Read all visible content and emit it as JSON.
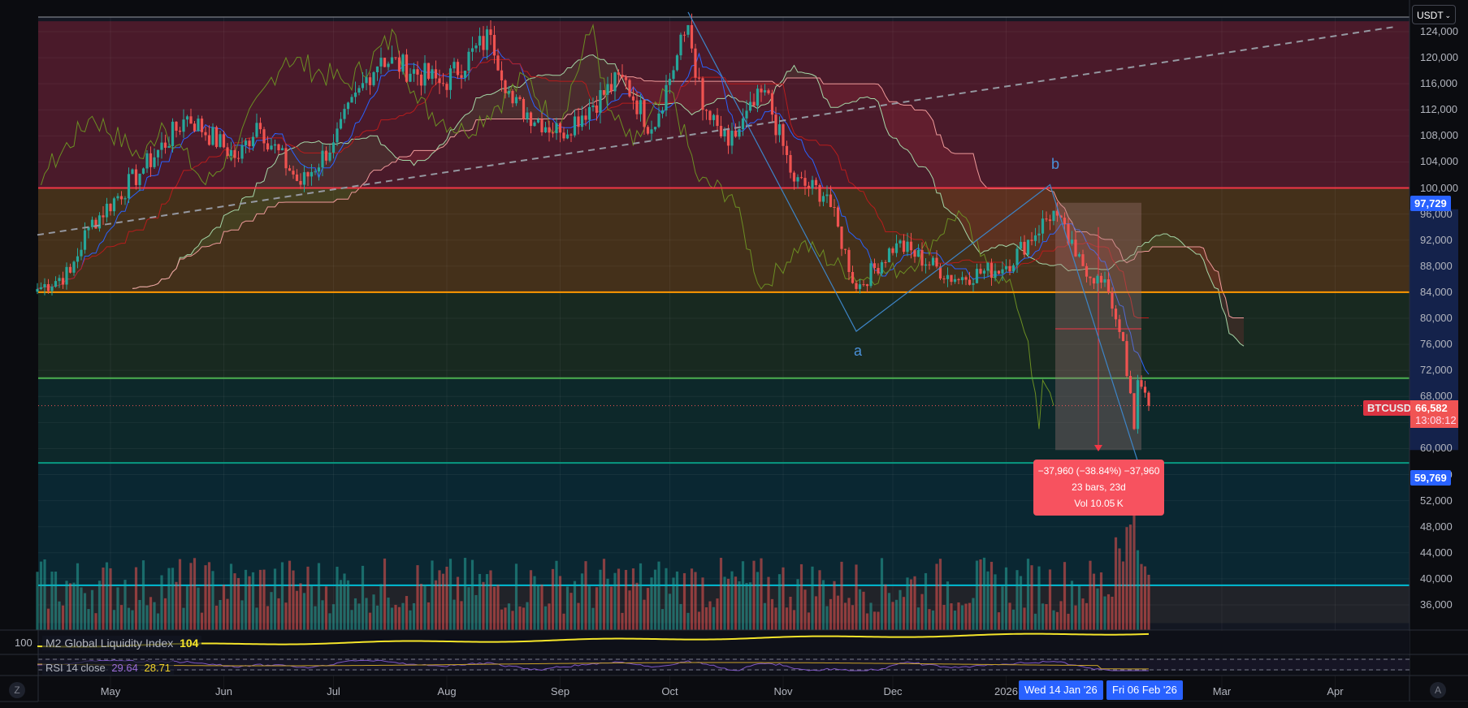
{
  "header": {
    "currency_select": "USDT"
  },
  "price_axis": {
    "ticks": [
      124000,
      120000,
      116000,
      112000,
      108000,
      104000,
      100000,
      96000,
      92000,
      88000,
      84000,
      80000,
      76000,
      72000,
      68000,
      64000,
      60000,
      56000,
      52000,
      48000,
      44000,
      40000,
      36000
    ],
    "tick_labels": [
      "124,000",
      "120,000",
      "116,000",
      "112,000",
      "108,000",
      "104,000",
      "100,000",
      "96,000",
      "92,000",
      "88,000",
      "84,000",
      "80,000",
      "76,000",
      "72,000",
      "68,000",
      "64,000",
      "60,000",
      "56,000",
      "52,000",
      "48,000",
      "44,000",
      "40,000",
      "36,000"
    ],
    "range_high_label": "97,729",
    "range_low_label": "59,769",
    "symbol_label": "BTCUSDT",
    "last_price_label": "66,582",
    "countdown": "13:08:12"
  },
  "time_axis": {
    "months": [
      {
        "label": "May",
        "date": "2025-05-01"
      },
      {
        "label": "Jun",
        "date": "2025-06-01"
      },
      {
        "label": "Jul",
        "date": "2025-07-01"
      },
      {
        "label": "Aug",
        "date": "2025-08-01"
      },
      {
        "label": "Sep",
        "date": "2025-09-01"
      },
      {
        "label": "Oct",
        "date": "2025-10-01"
      },
      {
        "label": "Nov",
        "date": "2025-11-01"
      },
      {
        "label": "Dec",
        "date": "2025-12-01"
      },
      {
        "label": "2026",
        "date": "2026-01-01"
      },
      {
        "label": "Mar",
        "date": "2026-03-01"
      },
      {
        "label": "Apr",
        "date": "2026-04-01"
      }
    ],
    "range_start_label": "Wed 14 Jan '26",
    "range_end_label": "Fri 06 Feb '26"
  },
  "measure": {
    "line1": "−37,960 (−38.84%) −37,960",
    "line2": "23 bars, 23d",
    "line3": "Vol 10.05 K",
    "from_price": 97729,
    "to_price": 59769,
    "from_date": "2026-01-14",
    "to_date": "2026-02-06"
  },
  "wave_labels": {
    "a": "a",
    "b": "b"
  },
  "indicators": {
    "m2": {
      "name": "M2 Global Liquidity Index",
      "value": "104",
      "axis_label": "100"
    },
    "rsi": {
      "name": "RSI 14 close",
      "value1": "29.64",
      "value2": "28.71"
    }
  },
  "buttons": {
    "zoom": "Z",
    "auto": "A"
  },
  "colors": {
    "up": "#26a69a",
    "down": "#ef5350",
    "accent": "#2962ff",
    "m2": "#f5e52a",
    "rsi": "#7e57c2"
  },
  "chart_data": {
    "type": "candlestick",
    "symbol": "BTCUSDT",
    "interval": "1D",
    "ylim": [
      33000,
      126000
    ],
    "close_keypoints": [
      [
        "2025-04-11",
        84500
      ],
      [
        "2025-04-20",
        87000
      ],
      [
        "2025-04-25",
        94000
      ],
      [
        "2025-05-10",
        103000
      ],
      [
        "2025-05-22",
        111000
      ],
      [
        "2025-06-05",
        104500
      ],
      [
        "2025-06-10",
        110000
      ],
      [
        "2025-06-22",
        100500
      ],
      [
        "2025-07-01",
        107000
      ],
      [
        "2025-07-10",
        117000
      ],
      [
        "2025-07-14",
        120000
      ],
      [
        "2025-07-31",
        116000
      ],
      [
        "2025-08-13",
        123500
      ],
      [
        "2025-08-19",
        113000
      ],
      [
        "2025-09-01",
        108500
      ],
      [
        "2025-09-18",
        117000
      ],
      [
        "2025-09-26",
        109000
      ],
      [
        "2025-10-06",
        125000
      ],
      [
        "2025-10-10",
        112000
      ],
      [
        "2025-10-17",
        106500
      ],
      [
        "2025-10-27",
        115000
      ],
      [
        "2025-11-04",
        101000
      ],
      [
        "2025-11-13",
        99000
      ],
      [
        "2025-11-21",
        84500
      ],
      [
        "2025-12-02",
        91500
      ],
      [
        "2025-12-18",
        86000
      ],
      [
        "2026-01-01",
        88000
      ],
      [
        "2026-01-14",
        96500
      ],
      [
        "2026-01-20",
        89500
      ],
      [
        "2026-01-29",
        84000
      ],
      [
        "2026-02-02",
        76500
      ],
      [
        "2026-02-05",
        63000
      ],
      [
        "2026-02-06",
        70500
      ],
      [
        "2026-02-09",
        66582
      ]
    ],
    "horizontal_levels": [
      {
        "price": 100000,
        "color": "#f23645"
      },
      {
        "price": 84000,
        "color": "#ff9800"
      },
      {
        "price": 70800,
        "color": "#4caf50"
      },
      {
        "price": 57800,
        "color": "#089981"
      },
      {
        "price": 39000,
        "color": "#00bcd4"
      }
    ],
    "zones": [
      {
        "from": 100000,
        "to": 125600,
        "color": "rgba(120,30,50,0.55)"
      },
      {
        "from": 84000,
        "to": 100000,
        "color": "rgba(110,70,20,0.55)"
      },
      {
        "from": 70800,
        "to": 84000,
        "color": "rgba(30,60,30,0.5)"
      },
      {
        "from": 57800,
        "to": 70800,
        "color": "rgba(10,55,50,0.55)"
      },
      {
        "from": 39000,
        "to": 57800,
        "color": "rgba(0,60,70,0.45)"
      },
      {
        "from": 33200,
        "to": 39000,
        "color": "rgba(50,50,50,0.45)"
      }
    ],
    "trendline": [
      [
        "2025-04-11",
        92800
      ],
      [
        "2026-04-18",
        124800
      ]
    ],
    "wave_lines": [
      [
        "2025-10-06",
        127000
      ],
      [
        "2025-11-21",
        78000
      ],
      [
        "2026-01-13",
        100500
      ],
      [
        "2026-02-06",
        58000
      ]
    ]
  }
}
